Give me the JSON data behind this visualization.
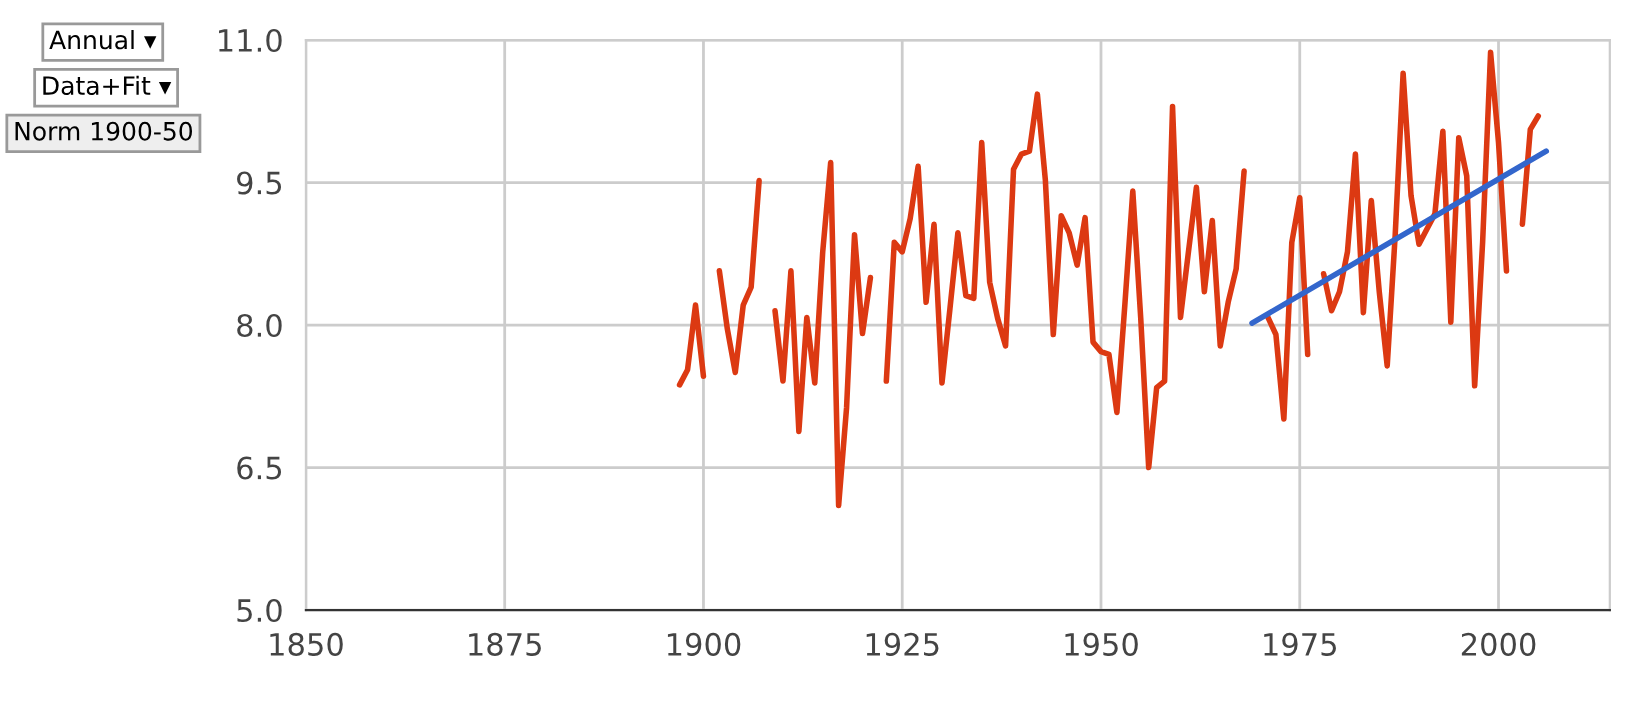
{
  "chart_data": {
    "type": "line",
    "x": [
      1897,
      1898,
      1899,
      1900,
      1901,
      1902,
      1903,
      1904,
      1905,
      1906,
      1907,
      1908,
      1909,
      1910,
      1911,
      1912,
      1913,
      1914,
      1915,
      1916,
      1917,
      1918,
      1919,
      1920,
      1921,
      1922,
      1923,
      1924,
      1925,
      1926,
      1927,
      1928,
      1929,
      1930,
      1931,
      1932,
      1933,
      1934,
      1935,
      1936,
      1937,
      1938,
      1939,
      1940,
      1941,
      1942,
      1943,
      1944,
      1945,
      1946,
      1947,
      1948,
      1949,
      1950,
      1951,
      1952,
      1953,
      1954,
      1955,
      1956,
      1957,
      1958,
      1959,
      1960,
      1961,
      1962,
      1963,
      1964,
      1965,
      1966,
      1967,
      1968,
      1969,
      1970,
      1971,
      1972,
      1973,
      1974,
      1975,
      1976,
      1977,
      1978,
      1979,
      1980,
      1981,
      1982,
      1983,
      1984,
      1985,
      1986,
      1987,
      1988,
      1989,
      1990,
      1991,
      1992,
      1993,
      1994,
      1995,
      1996,
      1997,
      1998,
      1999,
      2000,
      2001,
      2002,
      2003,
      2004,
      2005
    ],
    "series": [
      {
        "color": "#dc3912",
        "values": [
          7.37,
          7.53,
          8.21,
          7.46,
          null,
          8.57,
          7.96,
          7.5,
          8.21,
          8.4,
          9.52,
          null,
          8.15,
          7.41,
          8.57,
          6.88,
          8.08,
          7.39,
          8.77,
          9.71,
          6.1,
          7.13,
          8.95,
          7.91,
          8.5,
          null,
          7.41,
          8.87,
          8.77,
          9.12,
          9.67,
          8.24,
          9.06,
          7.39,
          8.17,
          8.97,
          8.31,
          8.28,
          9.92,
          8.45,
          8.07,
          7.78,
          9.64,
          9.8,
          9.83,
          10.43,
          9.53,
          7.9,
          9.15,
          8.97,
          8.63,
          9.13,
          7.82,
          7.72,
          7.69,
          7.08,
          8.21,
          9.41,
          8.07,
          6.5,
          7.34,
          7.41,
          10.3,
          8.08,
          8.77,
          9.45,
          8.35,
          9.1,
          7.78,
          8.24,
          8.59,
          9.62,
          null,
          null,
          8.08,
          7.9,
          7.01,
          8.87,
          9.34,
          7.69,
          null,
          8.54,
          8.15,
          8.35,
          8.77,
          9.8,
          8.13,
          9.31,
          8.35,
          7.57,
          8.94,
          10.65,
          9.36,
          8.85,
          9.01,
          9.17,
          10.04,
          8.03,
          9.97,
          9.57,
          7.36,
          8.87,
          10.87,
          9.92,
          8.57,
          null,
          9.06,
          10.06,
          10.2
        ]
      },
      {
        "type": "line",
        "color": "#3366cc",
        "x": [
          1969,
          2006
        ],
        "values": [
          8.02,
          9.83
        ]
      }
    ],
    "xlim": [
      1850,
      2014
    ],
    "ylim": [
      5,
      11
    ],
    "xticks": [
      1850,
      1875,
      1900,
      1925,
      1950,
      1975,
      2000
    ],
    "yticks": [
      {
        "value": 5,
        "label": "5.0"
      },
      {
        "value": 6.5,
        "label": "6.5"
      },
      {
        "value": 8,
        "label": "8.0"
      },
      {
        "value": 9.5,
        "label": "9.5"
      },
      {
        "value": 11,
        "label": "11.0"
      }
    ],
    "grid": true,
    "legend": false,
    "annotations": [
      "Annual ▾",
      "Data+Fit ▾",
      "Norm 1900-50"
    ]
  }
}
